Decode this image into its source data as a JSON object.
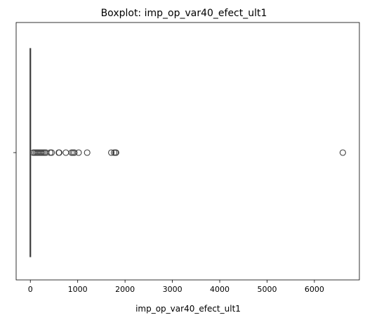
{
  "chart_data": {
    "type": "boxplot",
    "title": "Boxplot: imp_op_var40_efect_ult1",
    "xlabel": "imp_op_var40_efect_ult1",
    "ylabel": "",
    "orientation": "horizontal",
    "xlim": [
      -300,
      6950
    ],
    "xticks": [
      0,
      1000,
      2000,
      3000,
      4000,
      5000,
      6000
    ],
    "box": {
      "min": 0,
      "q1": 0,
      "median": 0,
      "q3": 0,
      "max": 0
    },
    "outliers": [
      60,
      90,
      120,
      150,
      180,
      210,
      240,
      270,
      300,
      330,
      420,
      450,
      600,
      610,
      750,
      870,
      900,
      930,
      1020,
      1200,
      1710,
      1770,
      1800,
      1810,
      6600
    ],
    "colors": {
      "box": "#3274a1",
      "line": "#3d3d3d",
      "marker_edge": "#3d3d3d"
    },
    "grid": false
  }
}
